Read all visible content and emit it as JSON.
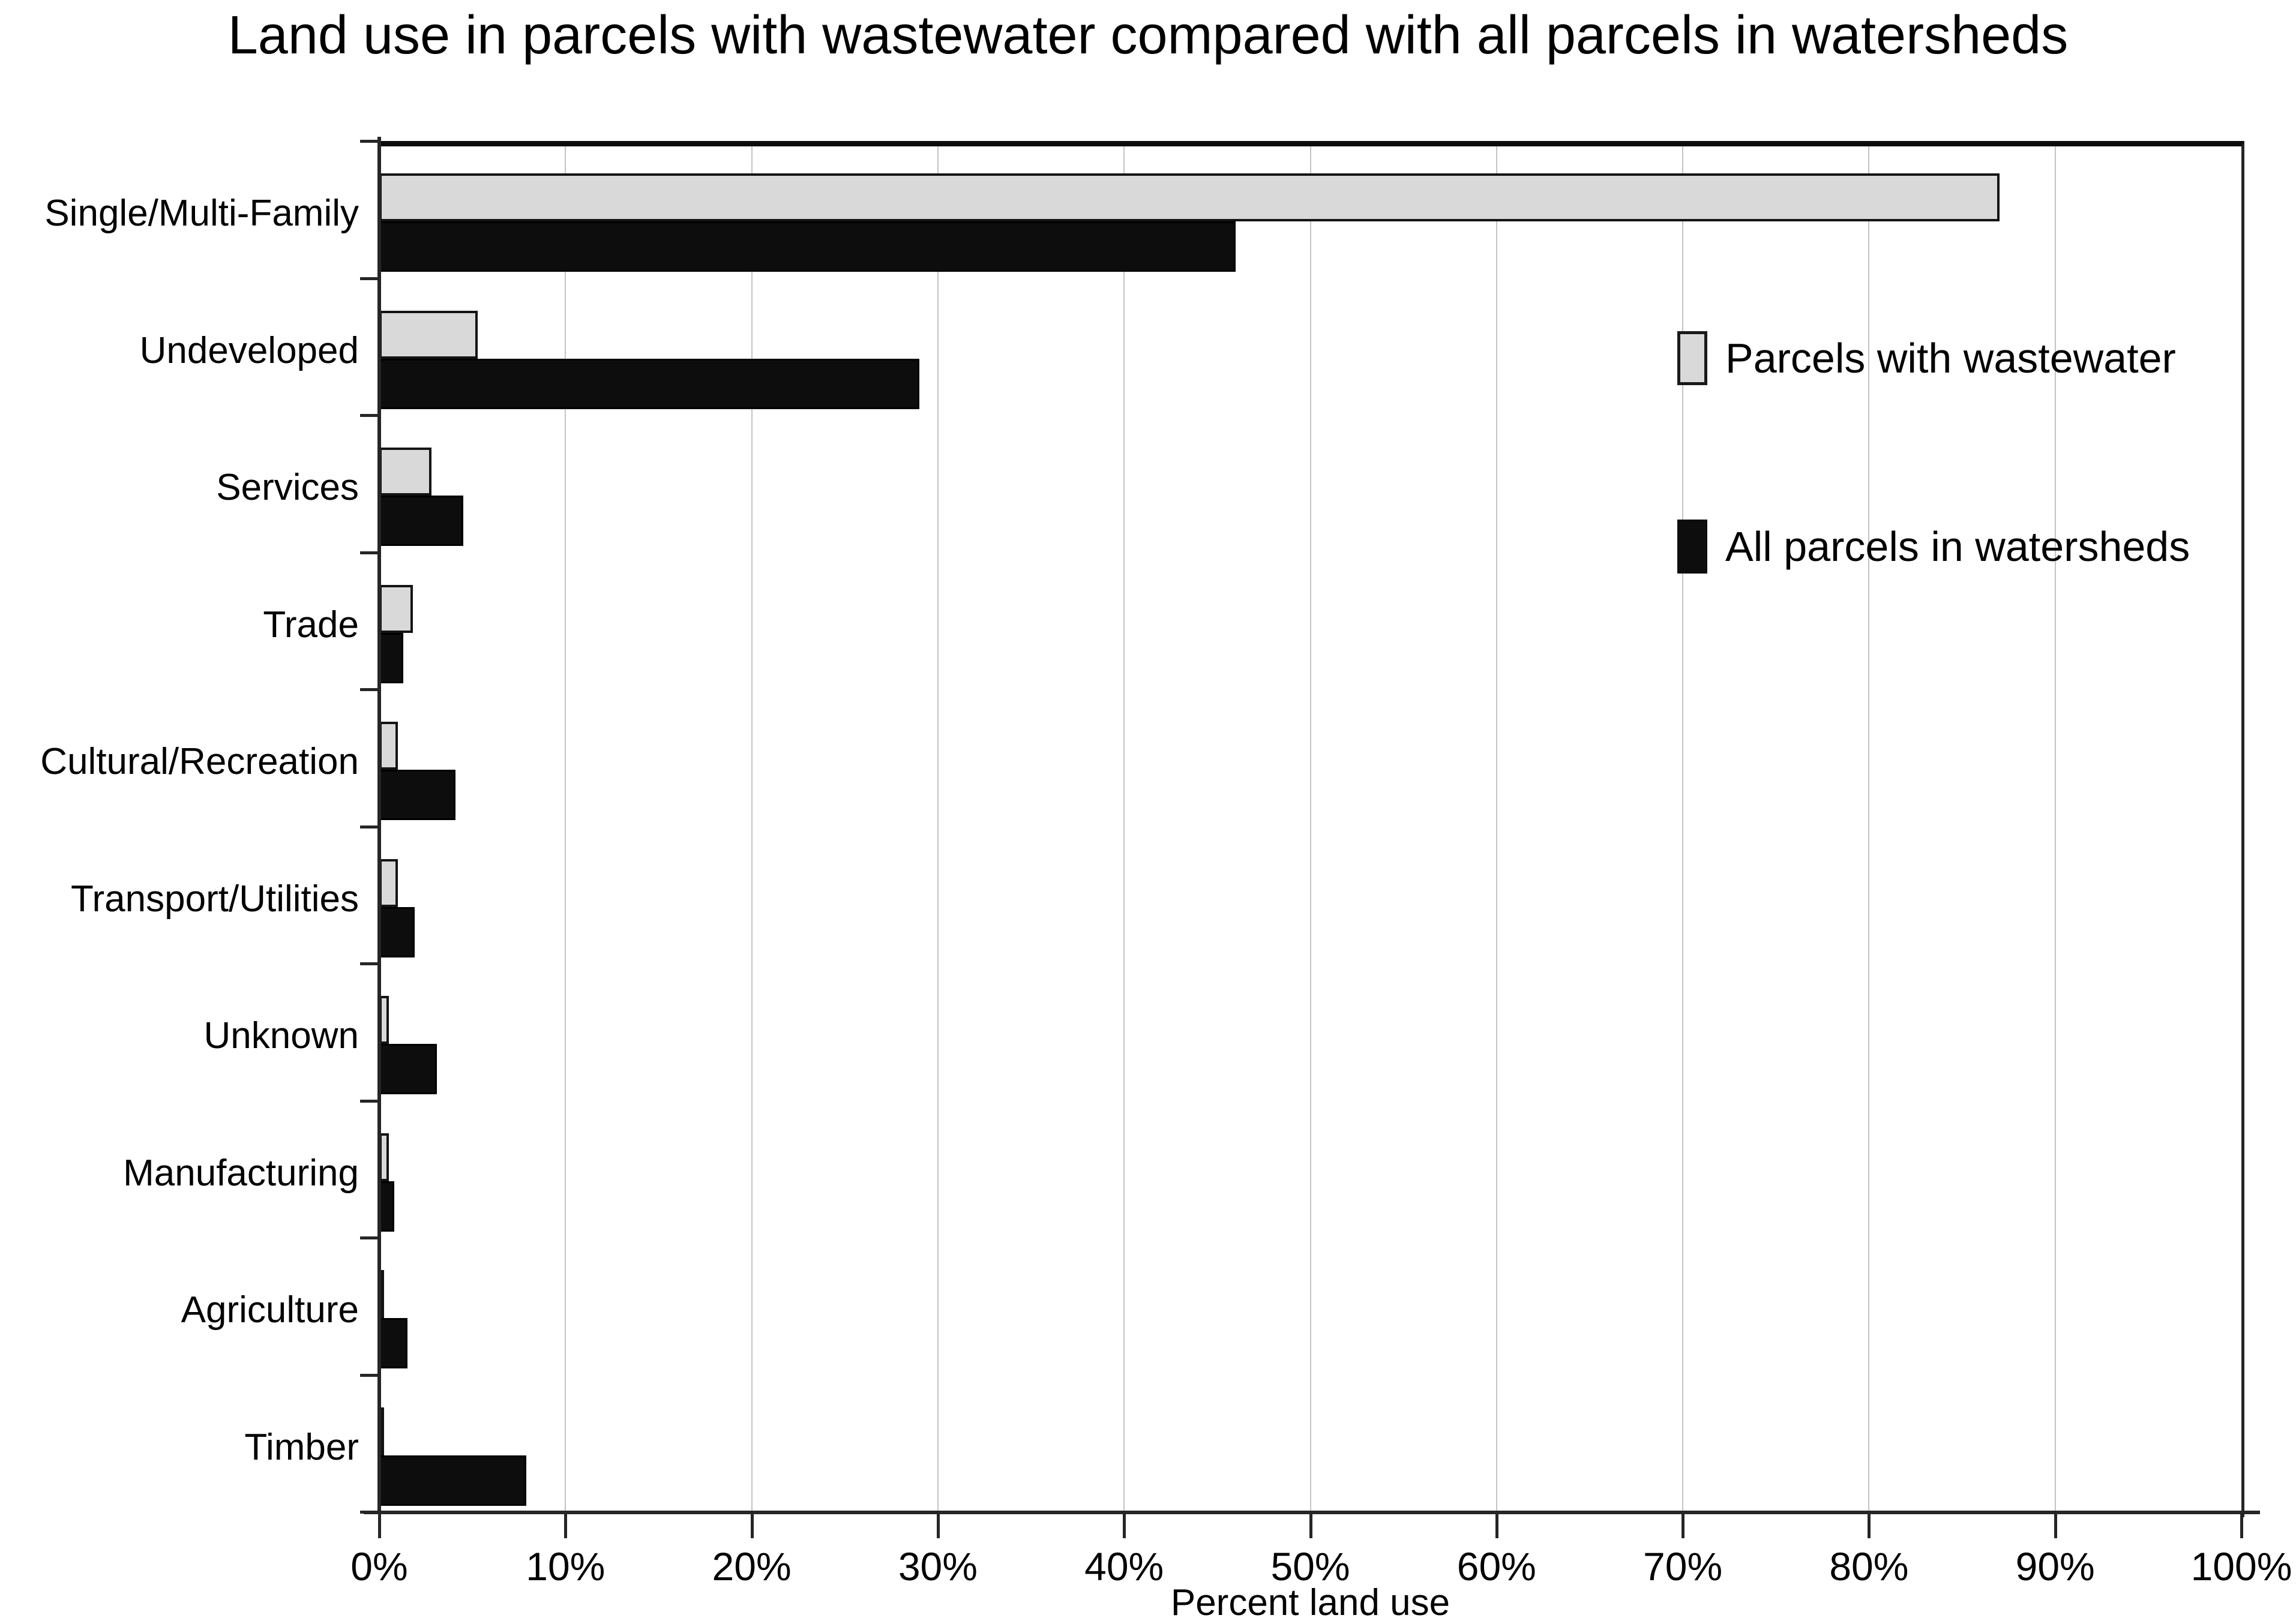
{
  "chart_data": {
    "type": "bar",
    "orientation": "horizontal",
    "title": "Land use in parcels with wastewater compared with all parcels in watersheds",
    "xlabel": "Percent land use",
    "xlim": [
      0,
      100
    ],
    "x_ticks": [
      "0%",
      "10%",
      "20%",
      "30%",
      "40%",
      "50%",
      "60%",
      "70%",
      "80%",
      "90%",
      "100%"
    ],
    "grid": "vertical-gridlines-every-10-percent",
    "legend_position": "inside-upper-right",
    "background": "#ffffff",
    "categories": [
      "Single/Multi-Family",
      "Undeveloped",
      "Services",
      "Trade",
      "Cultural/Recreation",
      "Transport/Utilities",
      "Unknown",
      "Manufacturing",
      "Agriculture",
      "Timber"
    ],
    "series": [
      {
        "name": "Parcels with wastewater",
        "color": "#d9d9d9",
        "border_color": "#141414",
        "values": [
          87,
          5.3,
          2.8,
          1.8,
          1.0,
          1.0,
          0.5,
          0.5,
          0.15,
          0.1
        ]
      },
      {
        "name": "All parcels in watersheds",
        "color": "#0d0d0d",
        "border_color": "#000000",
        "values": [
          46,
          29,
          4.5,
          1.3,
          4.1,
          1.9,
          3.1,
          0.8,
          1.5,
          7.9
        ]
      }
    ]
  }
}
